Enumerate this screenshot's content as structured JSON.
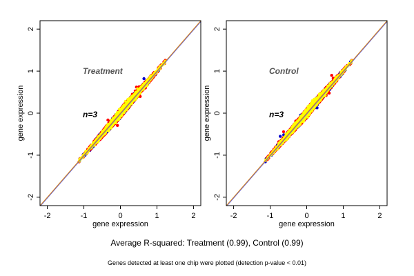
{
  "colors": {
    "yellow": "#ffff00",
    "red": "#ff0000",
    "blue": "#0000cc",
    "fit_line": "#e08c1a",
    "identity_line": "#5a5ad8",
    "background": "#ffffff"
  },
  "caption": {
    "main": "Average R-squared: Treatment (0.99), Control (0.99)",
    "note": "Genes detected at least one chip were plotted (detection p-value < 0.01)"
  },
  "chart_data": [
    {
      "type": "scatter",
      "title": "Treatment",
      "annotation": "n=3",
      "xlabel": "gene expression",
      "ylabel": "gene expression",
      "xlim": [
        -2.2,
        2.2
      ],
      "ylim": [
        -2.2,
        2.2
      ],
      "xticks": [
        -2,
        -1,
        0,
        1,
        2
      ],
      "yticks": [
        -2,
        -1,
        0,
        1,
        2
      ],
      "grid": false,
      "point_cloud": {
        "x_range": [
          -1.12,
          1.22
        ],
        "y_range": [
          -1.15,
          1.22
        ],
        "slope": 1.0,
        "colors": [
          "yellow",
          "red",
          "blue"
        ]
      },
      "reference_lines": [
        {
          "type": "identity",
          "slope": 1,
          "intercept": 0,
          "color": "identity_line"
        },
        {
          "type": "fit",
          "slope": 1,
          "intercept": 0,
          "color": "fit_line"
        }
      ]
    },
    {
      "type": "scatter",
      "title": "Control",
      "annotation": "n=3",
      "xlabel": "gene expression",
      "ylabel": "gene expression",
      "xlim": [
        -2.2,
        2.2
      ],
      "ylim": [
        -2.2,
        2.2
      ],
      "xticks": [
        -2,
        -1,
        0,
        1,
        2
      ],
      "yticks": [
        -2,
        -1,
        0,
        1,
        2
      ],
      "grid": false,
      "point_cloud": {
        "x_range": [
          -1.12,
          1.22
        ],
        "y_range": [
          -1.15,
          1.22
        ],
        "slope": 1.0,
        "colors": [
          "yellow",
          "red",
          "blue"
        ]
      },
      "reference_lines": [
        {
          "type": "identity",
          "slope": 1,
          "intercept": 0,
          "color": "identity_line"
        },
        {
          "type": "fit",
          "slope": 1,
          "intercept": 0,
          "color": "fit_line"
        }
      ]
    }
  ]
}
